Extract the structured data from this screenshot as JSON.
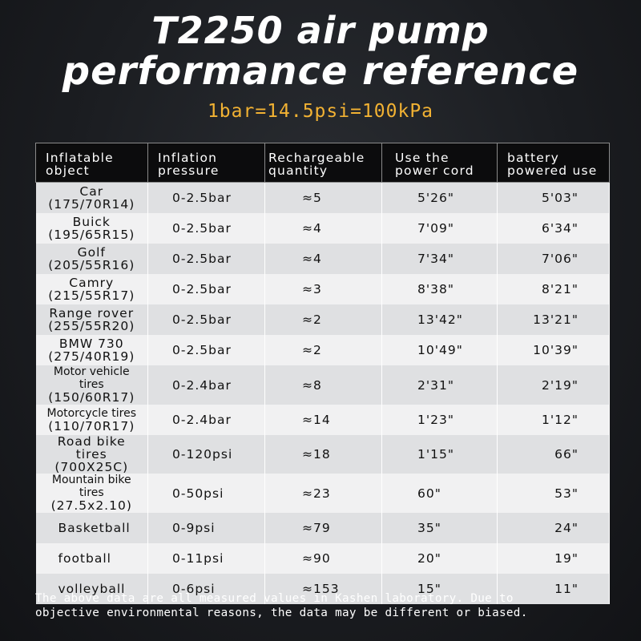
{
  "header": {
    "title_line1": "T2250 air pump",
    "title_line2": "performance reference",
    "subtitle": "1bar=14.5psi=100kPa"
  },
  "table": {
    "columns": [
      {
        "line1": "Inflatable",
        "line2": "object"
      },
      {
        "line1": "Inflation",
        "line2": "pressure"
      },
      {
        "line1": "Rechargeable",
        "line2": "quantity"
      },
      {
        "line1": "Use the",
        "line2": "power cord"
      },
      {
        "line1": "battery",
        "line2": "powered use"
      }
    ],
    "rows": [
      {
        "object": "Car",
        "size": "(175/70R14)",
        "pressure": "0-2.5bar",
        "quantity": "≈5",
        "cord": "5'26\"",
        "battery": "5'03\""
      },
      {
        "object": "Buick",
        "size": "(195/65R15)",
        "pressure": "0-2.5bar",
        "quantity": "≈4",
        "cord": "7'09\"",
        "battery": "6'34\""
      },
      {
        "object": "Golf",
        "size": "(205/55R16)",
        "pressure": "0-2.5bar",
        "quantity": "≈4",
        "cord": "7'34\"",
        "battery": "7'06\""
      },
      {
        "object": "Camry",
        "size": "(215/55R17)",
        "pressure": "0-2.5bar",
        "quantity": "≈3",
        "cord": "8'38\"",
        "battery": "8'21\""
      },
      {
        "object": "Range rover",
        "size": "(255/55R20)",
        "pressure": "0-2.5bar",
        "quantity": "≈2",
        "cord": "13'42\"",
        "battery": "13'21\""
      },
      {
        "object": "BMW 730",
        "size": "(275/40R19)",
        "pressure": "0-2.5bar",
        "quantity": "≈2",
        "cord": "10'49\"",
        "battery": "10'39\""
      },
      {
        "object": "Motor vehicle tires",
        "size": "(150/60R17)",
        "pressure": "0-2.4bar",
        "quantity": "≈8",
        "cord": "2'31\"",
        "battery": "2'19\""
      },
      {
        "object": "Motorcycle tires",
        "size": "(110/70R17)",
        "pressure": "0-2.4bar",
        "quantity": "≈14",
        "cord": "1'23\"",
        "battery": "1'12\""
      },
      {
        "object": "Road bike tires",
        "size": "(700X25C)",
        "pressure": "0-120psi",
        "quantity": "≈18",
        "cord": "1'15\"",
        "battery": "66\""
      },
      {
        "object": "Mountain bike tires",
        "size": "(27.5x2.10)",
        "pressure": "0-50psi",
        "quantity": "≈23",
        "cord": "60\"",
        "battery": "53\""
      },
      {
        "object": "Basketball",
        "size": "",
        "pressure": "0-9psi",
        "quantity": "≈79",
        "cord": "35\"",
        "battery": "24\""
      },
      {
        "object": "football",
        "size": "",
        "pressure": "0-11psi",
        "quantity": "≈90",
        "cord": "20\"",
        "battery": "19\""
      },
      {
        "object": "volleyball",
        "size": "",
        "pressure": "0-6psi",
        "quantity": "≈153",
        "cord": "15\"",
        "battery": "11\""
      }
    ]
  },
  "footer": {
    "note_line1": "The above data are all measured values in Kashen laboratory. Due to",
    "note_line2": "objective environmental reasons, the data may be different or biased."
  },
  "colors": {
    "background": "#1b1d21",
    "title": "#ffffff",
    "subtitle": "#f2b233",
    "header_bg": "#0c0c0d",
    "row_odd": "#dfe0e2",
    "row_even": "#f1f1f2"
  }
}
